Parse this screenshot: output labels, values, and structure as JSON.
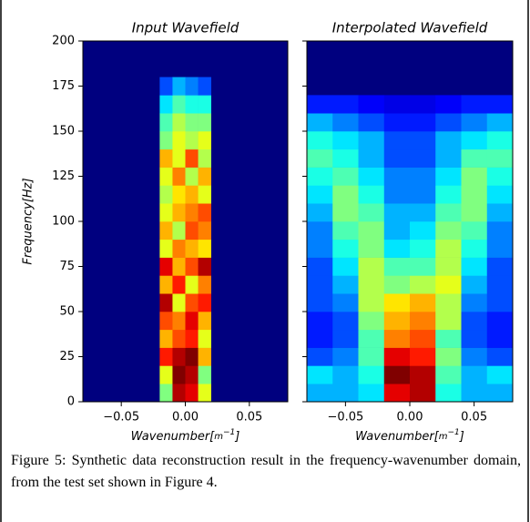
{
  "chart_data": [
    {
      "type": "heatmap",
      "title": "Input Wavefield",
      "ylabel": "Frequency[Hz]",
      "xlabel_parts": [
        "Wavenumber[",
        "m",
        "−1",
        "]"
      ],
      "xlim": [
        -0.08,
        0.08
      ],
      "ylim": [
        0,
        200
      ],
      "xticks": [
        {
          "value": -0.05,
          "label": "−0.05"
        },
        {
          "value": 0,
          "label": "0.00"
        },
        {
          "value": 0.05,
          "label": "0.05"
        }
      ],
      "yticks": [
        0,
        25,
        50,
        75,
        100,
        125,
        150,
        175,
        200
      ],
      "ytick_labels": true,
      "zlim": [
        0,
        1
      ],
      "background_color": "#00007f",
      "x_edges": [
        -0.02,
        -0.01,
        0,
        0.01,
        0.02
      ],
      "y_edges": [
        0,
        10,
        20,
        30,
        40,
        50,
        60,
        70,
        80,
        90,
        100,
        110,
        120,
        130,
        140,
        150,
        160,
        170,
        180
      ],
      "z": [
        [
          0.5,
          0.95,
          0.9,
          0.6
        ],
        [
          0.6,
          1.0,
          0.95,
          0.5
        ],
        [
          0.85,
          0.95,
          1.0,
          0.7
        ],
        [
          0.7,
          0.8,
          0.85,
          0.6
        ],
        [
          0.8,
          0.75,
          0.9,
          0.7
        ],
        [
          0.95,
          0.6,
          0.8,
          0.85
        ],
        [
          0.7,
          0.85,
          0.6,
          0.75
        ],
        [
          0.9,
          0.7,
          0.8,
          0.95
        ],
        [
          0.6,
          0.75,
          0.7,
          0.65
        ],
        [
          0.7,
          0.55,
          0.8,
          0.75
        ],
        [
          0.6,
          0.7,
          0.75,
          0.8
        ],
        [
          0.55,
          0.65,
          0.7,
          0.6
        ],
        [
          0.6,
          0.75,
          0.55,
          0.7
        ],
        [
          0.7,
          0.6,
          0.8,
          0.55
        ],
        [
          0.5,
          0.6,
          0.55,
          0.6
        ],
        [
          0.45,
          0.55,
          0.5,
          0.5
        ],
        [
          0.35,
          0.45,
          0.4,
          0.4
        ],
        [
          0.2,
          0.3,
          0.25,
          0.2
        ]
      ]
    },
    {
      "type": "heatmap",
      "title": "Interpolated Wavefield",
      "xlabel_parts": [
        "Wavenumber[",
        "m",
        "−1",
        "]"
      ],
      "xlim": [
        -0.08,
        0.08
      ],
      "ylim": [
        0,
        200
      ],
      "xticks": [
        {
          "value": -0.05,
          "label": "−0.05"
        },
        {
          "value": 0,
          "label": "0.00"
        },
        {
          "value": 0.05,
          "label": "0.05"
        }
      ],
      "yticks": [
        0,
        25,
        50,
        75,
        100,
        125,
        150,
        175,
        200
      ],
      "ytick_labels": false,
      "zlim": [
        0,
        1
      ],
      "background_color": "#00007f",
      "x_edges": [
        -0.08,
        -0.06,
        -0.04,
        -0.02,
        0,
        0.02,
        0.04,
        0.06,
        0.08
      ],
      "y_edges": [
        0,
        10,
        20,
        30,
        40,
        50,
        60,
        70,
        80,
        90,
        100,
        110,
        120,
        130,
        140,
        150,
        160,
        170
      ],
      "z": [
        [
          0.3,
          0.3,
          0.35,
          0.9,
          0.95,
          0.4,
          0.3,
          0.3
        ],
        [
          0.35,
          0.3,
          0.4,
          1.0,
          0.95,
          0.45,
          0.3,
          0.35
        ],
        [
          0.2,
          0.25,
          0.45,
          0.9,
          0.85,
          0.5,
          0.25,
          0.2
        ],
        [
          0.15,
          0.2,
          0.45,
          0.75,
          0.8,
          0.45,
          0.2,
          0.15
        ],
        [
          0.15,
          0.2,
          0.5,
          0.7,
          0.75,
          0.55,
          0.2,
          0.15
        ],
        [
          0.2,
          0.25,
          0.55,
          0.65,
          0.7,
          0.55,
          0.25,
          0.2
        ],
        [
          0.2,
          0.3,
          0.55,
          0.5,
          0.55,
          0.6,
          0.3,
          0.2
        ],
        [
          0.2,
          0.35,
          0.55,
          0.45,
          0.45,
          0.55,
          0.35,
          0.2
        ],
        [
          0.25,
          0.4,
          0.5,
          0.35,
          0.4,
          0.55,
          0.4,
          0.25
        ],
        [
          0.25,
          0.45,
          0.5,
          0.3,
          0.35,
          0.5,
          0.45,
          0.25
        ],
        [
          0.3,
          0.5,
          0.45,
          0.3,
          0.3,
          0.45,
          0.5,
          0.3
        ],
        [
          0.35,
          0.5,
          0.4,
          0.25,
          0.25,
          0.4,
          0.5,
          0.35
        ],
        [
          0.4,
          0.45,
          0.35,
          0.25,
          0.25,
          0.35,
          0.5,
          0.4
        ],
        [
          0.45,
          0.4,
          0.3,
          0.2,
          0.2,
          0.3,
          0.45,
          0.45
        ],
        [
          0.4,
          0.35,
          0.3,
          0.2,
          0.2,
          0.3,
          0.35,
          0.4
        ],
        [
          0.3,
          0.25,
          0.2,
          0.15,
          0.15,
          0.2,
          0.25,
          0.3
        ],
        [
          0.15,
          0.15,
          0.12,
          0.1,
          0.1,
          0.12,
          0.15,
          0.15
        ]
      ]
    }
  ],
  "caption": "Figure 5: Synthetic data reconstruction result in the frequency-wavenumber domain, from the test set shown in Figure 4."
}
